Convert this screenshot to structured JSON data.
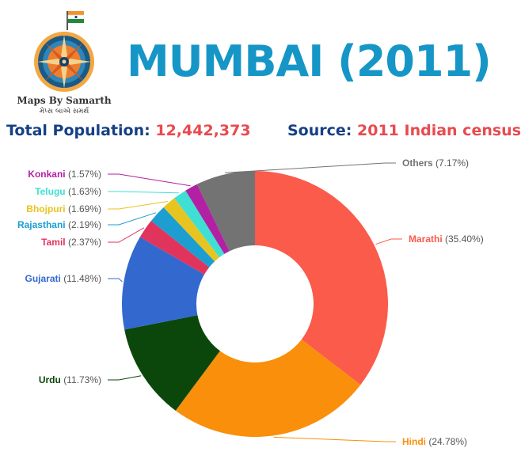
{
  "logo": {
    "name": "Maps By Samarth",
    "subtitle": "મેપ્સ બાએ સમર્થ"
  },
  "header": {
    "title": "MUMBAI (2011)",
    "population_label": "Total Population:",
    "population_value": "12,442,373",
    "source_label": "Source:",
    "source_value": "2011 Indian census"
  },
  "chart_data": {
    "type": "pie",
    "style": "donut",
    "legend": "leader-line labels around ring",
    "slices": [
      {
        "label": "Marathi",
        "value": 35.4,
        "display": "(35.40%)",
        "color": "#fa5b4b"
      },
      {
        "label": "Hindi",
        "value": 24.78,
        "display": "(24.78%)",
        "color": "#f98f0b"
      },
      {
        "label": "Urdu",
        "value": 11.73,
        "display": "(11.73%)",
        "color": "#0b470b"
      },
      {
        "label": "Gujarati",
        "value": 11.48,
        "display": "(11.48%)",
        "color": "#3368cf"
      },
      {
        "label": "Tamil",
        "value": 2.37,
        "display": "(2.37%)",
        "color": "#e0345d"
      },
      {
        "label": "Rajasthani",
        "value": 2.19,
        "display": "(2.19%)",
        "color": "#1c9ed0"
      },
      {
        "label": "Bhojpuri",
        "value": 1.69,
        "display": "(1.69%)",
        "color": "#e8c420"
      },
      {
        "label": "Telugu",
        "value": 1.63,
        "display": "(1.63%)",
        "color": "#3fe0d3"
      },
      {
        "label": "Konkani",
        "value": 1.57,
        "display": "(1.57%)",
        "color": "#b221a3"
      },
      {
        "label": "Others",
        "value": 7.17,
        "display": "(7.17%)",
        "color": "#737373"
      }
    ]
  }
}
